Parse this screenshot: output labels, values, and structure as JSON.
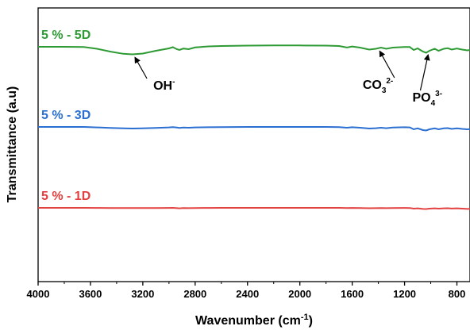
{
  "chart_data": {
    "type": "line",
    "title": "",
    "xlabel": "Wavenumber (cm",
    "xlabel_sup": "-1",
    "xlabel_tail": ")",
    "ylabel": "Transmittance (a.u)",
    "xlim": [
      4000,
      700
    ],
    "x_ticks": [
      4000,
      3600,
      3200,
      2800,
      2400,
      2000,
      1600,
      1200,
      800
    ],
    "x_tick_labels": [
      "4000",
      "3600",
      "3200",
      "2800",
      "2400",
      "2000",
      "1600",
      "1200",
      "800"
    ],
    "grid": false,
    "series": [
      {
        "name": "5 % - 5D",
        "color": "#2e9a34",
        "offset": 0.0,
        "points": [
          [
            4000,
            0.06
          ],
          [
            3800,
            0.06
          ],
          [
            3650,
            0.063
          ],
          [
            3550,
            0.085
          ],
          [
            3450,
            0.12
          ],
          [
            3350,
            0.148
          ],
          [
            3280,
            0.155
          ],
          [
            3200,
            0.145
          ],
          [
            3100,
            0.11
          ],
          [
            3000,
            0.08
          ],
          [
            2970,
            0.065
          ],
          [
            2940,
            0.09
          ],
          [
            2920,
            0.1
          ],
          [
            2890,
            0.082
          ],
          [
            2850,
            0.09
          ],
          [
            2800,
            0.068
          ],
          [
            2700,
            0.055
          ],
          [
            2600,
            0.05
          ],
          [
            2400,
            0.045
          ],
          [
            2200,
            0.042
          ],
          [
            2000,
            0.043
          ],
          [
            1800,
            0.045
          ],
          [
            1700,
            0.05
          ],
          [
            1640,
            0.068
          ],
          [
            1600,
            0.056
          ],
          [
            1540,
            0.07
          ],
          [
            1470,
            0.095
          ],
          [
            1420,
            0.085
          ],
          [
            1380,
            0.07
          ],
          [
            1340,
            0.085
          ],
          [
            1290,
            0.07
          ],
          [
            1200,
            0.062
          ],
          [
            1160,
            0.063
          ],
          [
            1130,
            0.1
          ],
          [
            1100,
            0.08
          ],
          [
            1060,
            0.12
          ],
          [
            1035,
            0.135
          ],
          [
            1010,
            0.11
          ],
          [
            970,
            0.085
          ],
          [
            940,
            0.11
          ],
          [
            900,
            0.085
          ],
          [
            870,
            0.078
          ],
          [
            840,
            0.095
          ],
          [
            800,
            0.082
          ],
          [
            760,
            0.095
          ],
          [
            720,
            0.105
          ],
          [
            700,
            0.1
          ]
        ]
      },
      {
        "name": "5 % - 3D",
        "color": "#2a6fd1",
        "offset": 0.0,
        "points": [
          [
            4000,
            0.0
          ],
          [
            3800,
            0.0
          ],
          [
            3650,
            0.0
          ],
          [
            3550,
            0.006
          ],
          [
            3450,
            0.012
          ],
          [
            3350,
            0.018
          ],
          [
            3280,
            0.02
          ],
          [
            3200,
            0.018
          ],
          [
            3100,
            0.012
          ],
          [
            3000,
            0.006
          ],
          [
            2970,
            0.002
          ],
          [
            2940,
            0.008
          ],
          [
            2920,
            0.012
          ],
          [
            2890,
            0.008
          ],
          [
            2850,
            0.01
          ],
          [
            2800,
            0.006
          ],
          [
            2700,
            0.004
          ],
          [
            2600,
            0.002
          ],
          [
            2400,
            0.0
          ],
          [
            2200,
            0.0
          ],
          [
            2000,
            0.0
          ],
          [
            1800,
            0.0
          ],
          [
            1700,
            0.002
          ],
          [
            1640,
            0.01
          ],
          [
            1600,
            0.004
          ],
          [
            1540,
            0.01
          ],
          [
            1470,
            0.02
          ],
          [
            1420,
            0.016
          ],
          [
            1380,
            0.01
          ],
          [
            1340,
            0.016
          ],
          [
            1290,
            0.008
          ],
          [
            1200,
            0.004
          ],
          [
            1160,
            0.006
          ],
          [
            1130,
            0.03
          ],
          [
            1100,
            0.018
          ],
          [
            1060,
            0.04
          ],
          [
            1035,
            0.045
          ],
          [
            1010,
            0.03
          ],
          [
            970,
            0.018
          ],
          [
            940,
            0.03
          ],
          [
            900,
            0.018
          ],
          [
            870,
            0.015
          ],
          [
            840,
            0.025
          ],
          [
            800,
            0.018
          ],
          [
            760,
            0.025
          ],
          [
            720,
            0.03
          ],
          [
            700,
            0.028
          ]
        ]
      },
      {
        "name": "5 % - 1D",
        "color": "#e34040",
        "offset": 0.0,
        "points": [
          [
            4000,
            0.0
          ],
          [
            3800,
            0.0
          ],
          [
            3650,
            0.0
          ],
          [
            3550,
            0.001
          ],
          [
            3450,
            0.002
          ],
          [
            3350,
            0.003
          ],
          [
            3280,
            0.003
          ],
          [
            3200,
            0.003
          ],
          [
            3100,
            0.002
          ],
          [
            3000,
            0.001
          ],
          [
            2970,
            0.0
          ],
          [
            2940,
            0.004
          ],
          [
            2920,
            0.006
          ],
          [
            2890,
            0.003
          ],
          [
            2850,
            0.004
          ],
          [
            2800,
            0.002
          ],
          [
            2700,
            0.001
          ],
          [
            2600,
            0.0
          ],
          [
            2400,
            0.0
          ],
          [
            2200,
            0.0
          ],
          [
            2000,
            0.0
          ],
          [
            1800,
            0.0
          ],
          [
            1700,
            0.0
          ],
          [
            1640,
            0.003
          ],
          [
            1600,
            0.001
          ],
          [
            1540,
            0.003
          ],
          [
            1470,
            0.005
          ],
          [
            1420,
            0.004
          ],
          [
            1380,
            0.003
          ],
          [
            1340,
            0.004
          ],
          [
            1290,
            0.002
          ],
          [
            1200,
            0.001
          ],
          [
            1160,
            0.002
          ],
          [
            1130,
            0.01
          ],
          [
            1100,
            0.006
          ],
          [
            1060,
            0.014
          ],
          [
            1035,
            0.015
          ],
          [
            1010,
            0.01
          ],
          [
            970,
            0.006
          ],
          [
            940,
            0.01
          ],
          [
            900,
            0.006
          ],
          [
            870,
            0.005
          ],
          [
            840,
            0.009
          ],
          [
            800,
            0.006
          ],
          [
            760,
            0.01
          ],
          [
            720,
            0.014
          ],
          [
            700,
            0.013
          ]
        ]
      }
    ],
    "annotations": [
      {
        "text": "OH",
        "sup": "-",
        "sub": "",
        "x_text": 3120,
        "x_arrow": 3260
      },
      {
        "text": "CO",
        "sub": "3",
        "sup": "2-",
        "x_text": 1520,
        "x_arrow": 1390
      },
      {
        "text": "PO",
        "sub": "4",
        "sup": "3-",
        "x_text": 1140,
        "x_arrow": 1020
      }
    ]
  }
}
